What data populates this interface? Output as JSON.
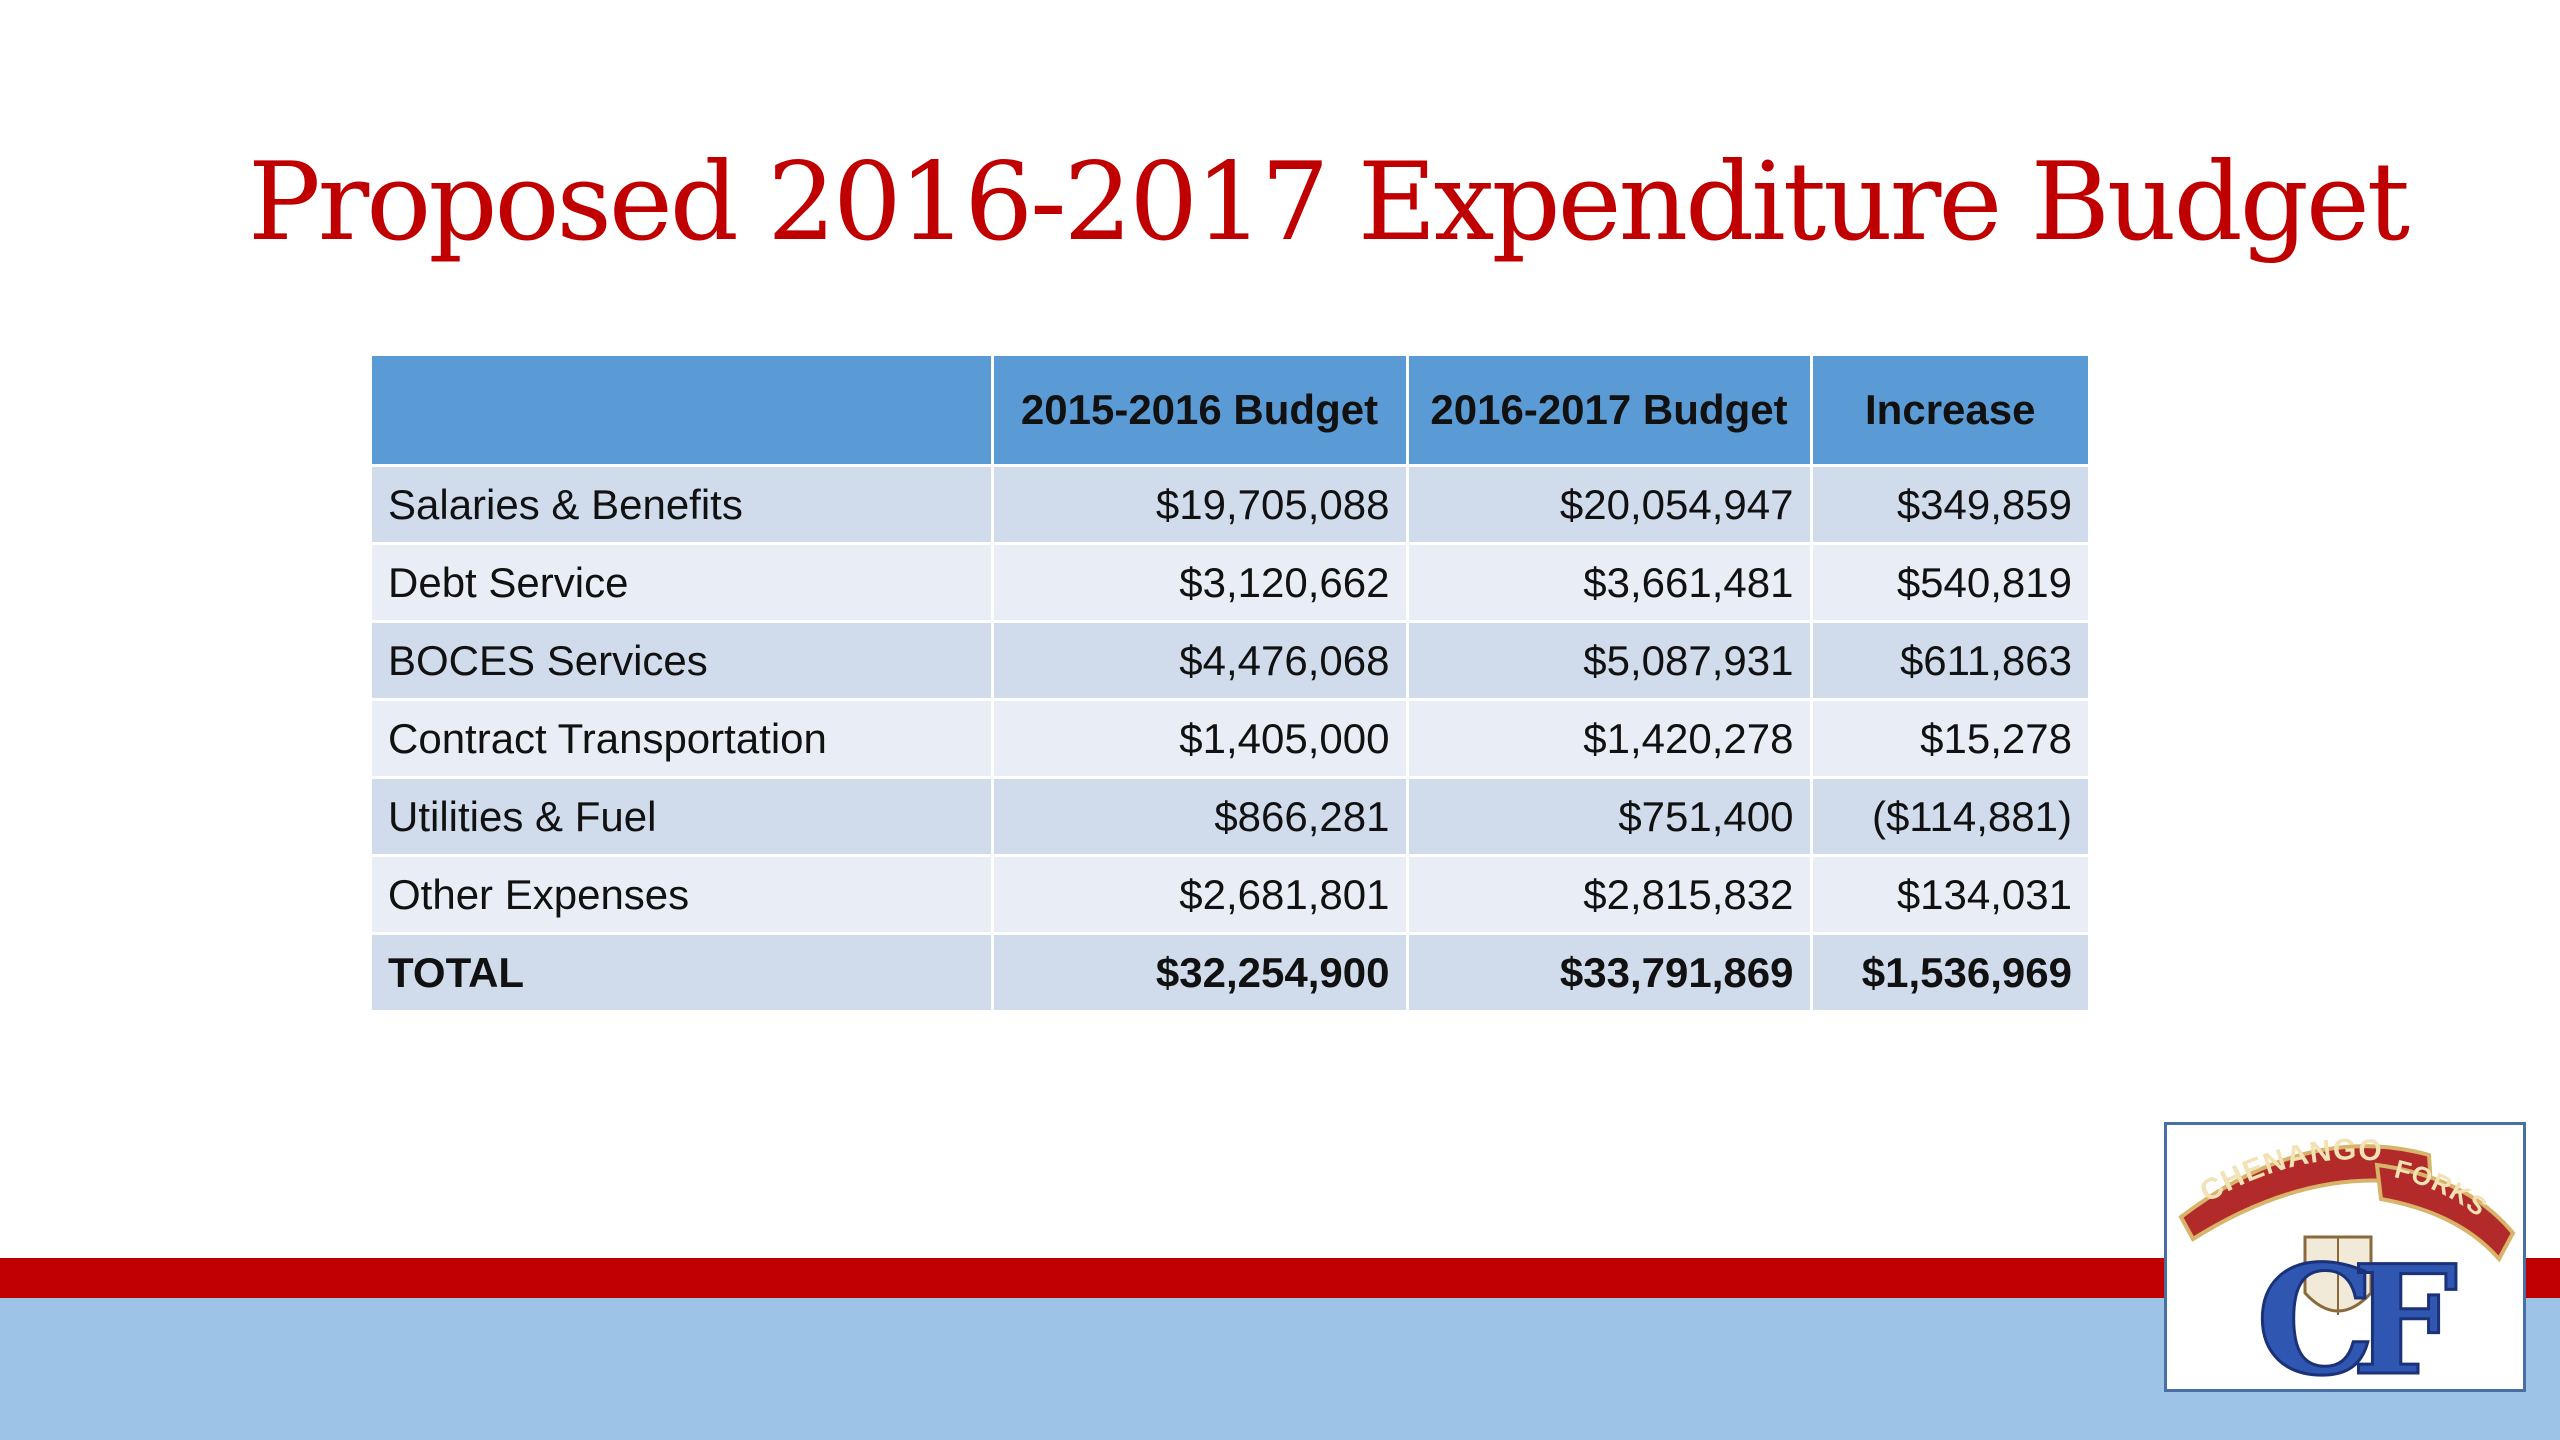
{
  "slide": {
    "title": "Proposed 2016-2017 Expenditure Budget"
  },
  "table": {
    "headers": [
      "",
      "2015-2016 Budget",
      "2016-2017 Budget",
      "Increase"
    ],
    "rows": [
      {
        "category": "Salaries & Benefits",
        "budget_2015_2016": "$19,705,088",
        "budget_2016_2017": "$20,054,947",
        "increase": "$349,859"
      },
      {
        "category": "Debt Service",
        "budget_2015_2016": "$3,120,662",
        "budget_2016_2017": "$3,661,481",
        "increase": "$540,819"
      },
      {
        "category": "BOCES Services",
        "budget_2015_2016": "$4,476,068",
        "budget_2016_2017": "$5,087,931",
        "increase": "$611,863"
      },
      {
        "category": "Contract Transportation",
        "budget_2015_2016": "$1,405,000",
        "budget_2016_2017": "$1,420,278",
        "increase": "$15,278"
      },
      {
        "category": "Utilities & Fuel",
        "budget_2015_2016": "$866,281",
        "budget_2016_2017": "$751,400",
        "increase": "($114,881)"
      },
      {
        "category": "Other Expenses",
        "budget_2015_2016": "$2,681,801",
        "budget_2016_2017": "$2,815,832",
        "increase": "$134,031"
      },
      {
        "category": "TOTAL",
        "budget_2015_2016": "$32,254,900",
        "budget_2016_2017": "$33,791,869",
        "increase": "$1,536,969"
      }
    ]
  },
  "logo": {
    "banner_top": "CHENANGO",
    "banner_right": "FORKS",
    "monogram": "CF"
  },
  "colors": {
    "title": "#c00000",
    "header_fill": "#5b9bd5",
    "row_band_a": "#d0dbeb",
    "row_band_b": "#e9edf6",
    "footer_red": "#c00000",
    "footer_blue": "#9dc3e6"
  }
}
